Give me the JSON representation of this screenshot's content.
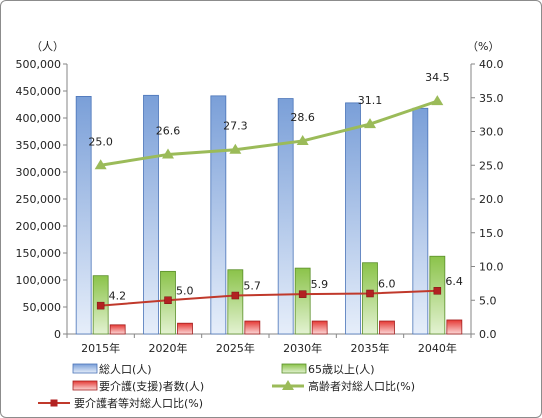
{
  "chart_data": {
    "type": "bar",
    "categories": [
      "2015年",
      "2020年",
      "2025年",
      "2030年",
      "2035年",
      "2040年"
    ],
    "y_left": {
      "unit": "（人）",
      "min": 0,
      "max": 500000,
      "step": 50000,
      "ticks": [
        "0",
        "50,000",
        "100,000",
        "150,000",
        "200,000",
        "250,000",
        "300,000",
        "350,000",
        "400,000",
        "450,000",
        "500,000"
      ]
    },
    "y_right": {
      "unit": "（%）",
      "min": 0,
      "max": 40,
      "step": 5,
      "ticks": [
        "0.0",
        "5.0",
        "10.0",
        "15.0",
        "20.0",
        "25.0",
        "30.0",
        "35.0",
        "40.0"
      ]
    },
    "series": [
      {
        "name": "総人口(人)",
        "kind": "bar",
        "axis": "left",
        "color": "#7a9fd8",
        "values": [
          440000,
          442000,
          441000,
          436000,
          428000,
          418000
        ]
      },
      {
        "name": "65歳以上(人)",
        "kind": "bar",
        "axis": "left",
        "color": "#8bc34a",
        "values": [
          108000,
          116000,
          119000,
          122000,
          132000,
          144000
        ]
      },
      {
        "name": "要介護(支援)者数(人)",
        "kind": "bar",
        "axis": "left",
        "color": "#e53935",
        "values": [
          17000,
          20000,
          24000,
          24000,
          24000,
          26000
        ]
      },
      {
        "name": "高齢者対総人口比(%)",
        "kind": "line",
        "axis": "right",
        "color": "#9bbb59",
        "marker": "triangle",
        "values": [
          25.0,
          26.6,
          27.3,
          28.6,
          31.1,
          34.5
        ],
        "labels": [
          "25.0",
          "26.6",
          "27.3",
          "28.6",
          "31.1",
          "34.5"
        ]
      },
      {
        "name": "要介護者等対総人口比(%)",
        "kind": "line",
        "axis": "right",
        "color": "#c0392b",
        "marker": "square",
        "values": [
          4.2,
          5.0,
          5.7,
          5.9,
          6.0,
          6.4
        ],
        "labels": [
          "4.2",
          "5.0",
          "5.7",
          "5.9",
          "6.0",
          "6.4"
        ]
      }
    ],
    "legend_position": "bottom",
    "grid": false
  }
}
